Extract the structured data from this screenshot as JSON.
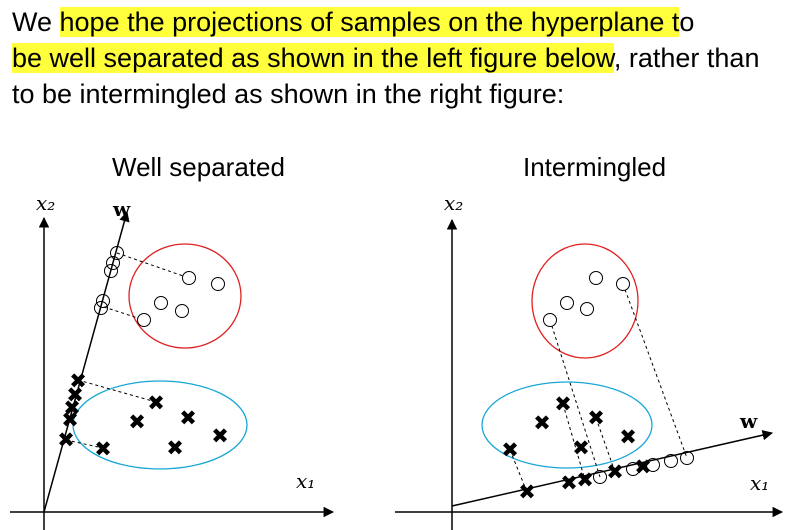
{
  "paragraph": {
    "seg1": "We ",
    "seg2_highlight": "hope the projections of samples on the hyperplane t",
    "seg3": "o",
    "seg4_highlight": "be well separated as shown in the left figure below",
    "seg5": ", rather than to be intermingled as shown in the right figure:"
  },
  "left_figure": {
    "title": "Well separated",
    "x_axis_label": "x₁",
    "y_axis_label": "x₂",
    "w_label": "w"
  },
  "right_figure": {
    "title": "Intermingled",
    "x_axis_label": "x₁",
    "y_axis_label": "x₂",
    "w_label": "w"
  },
  "colors": {
    "highlight": "#ffff3c",
    "circle_class_boundary": "#e02020",
    "cross_class_boundary": "#1aa7d6"
  },
  "marker_glyph": "✖"
}
